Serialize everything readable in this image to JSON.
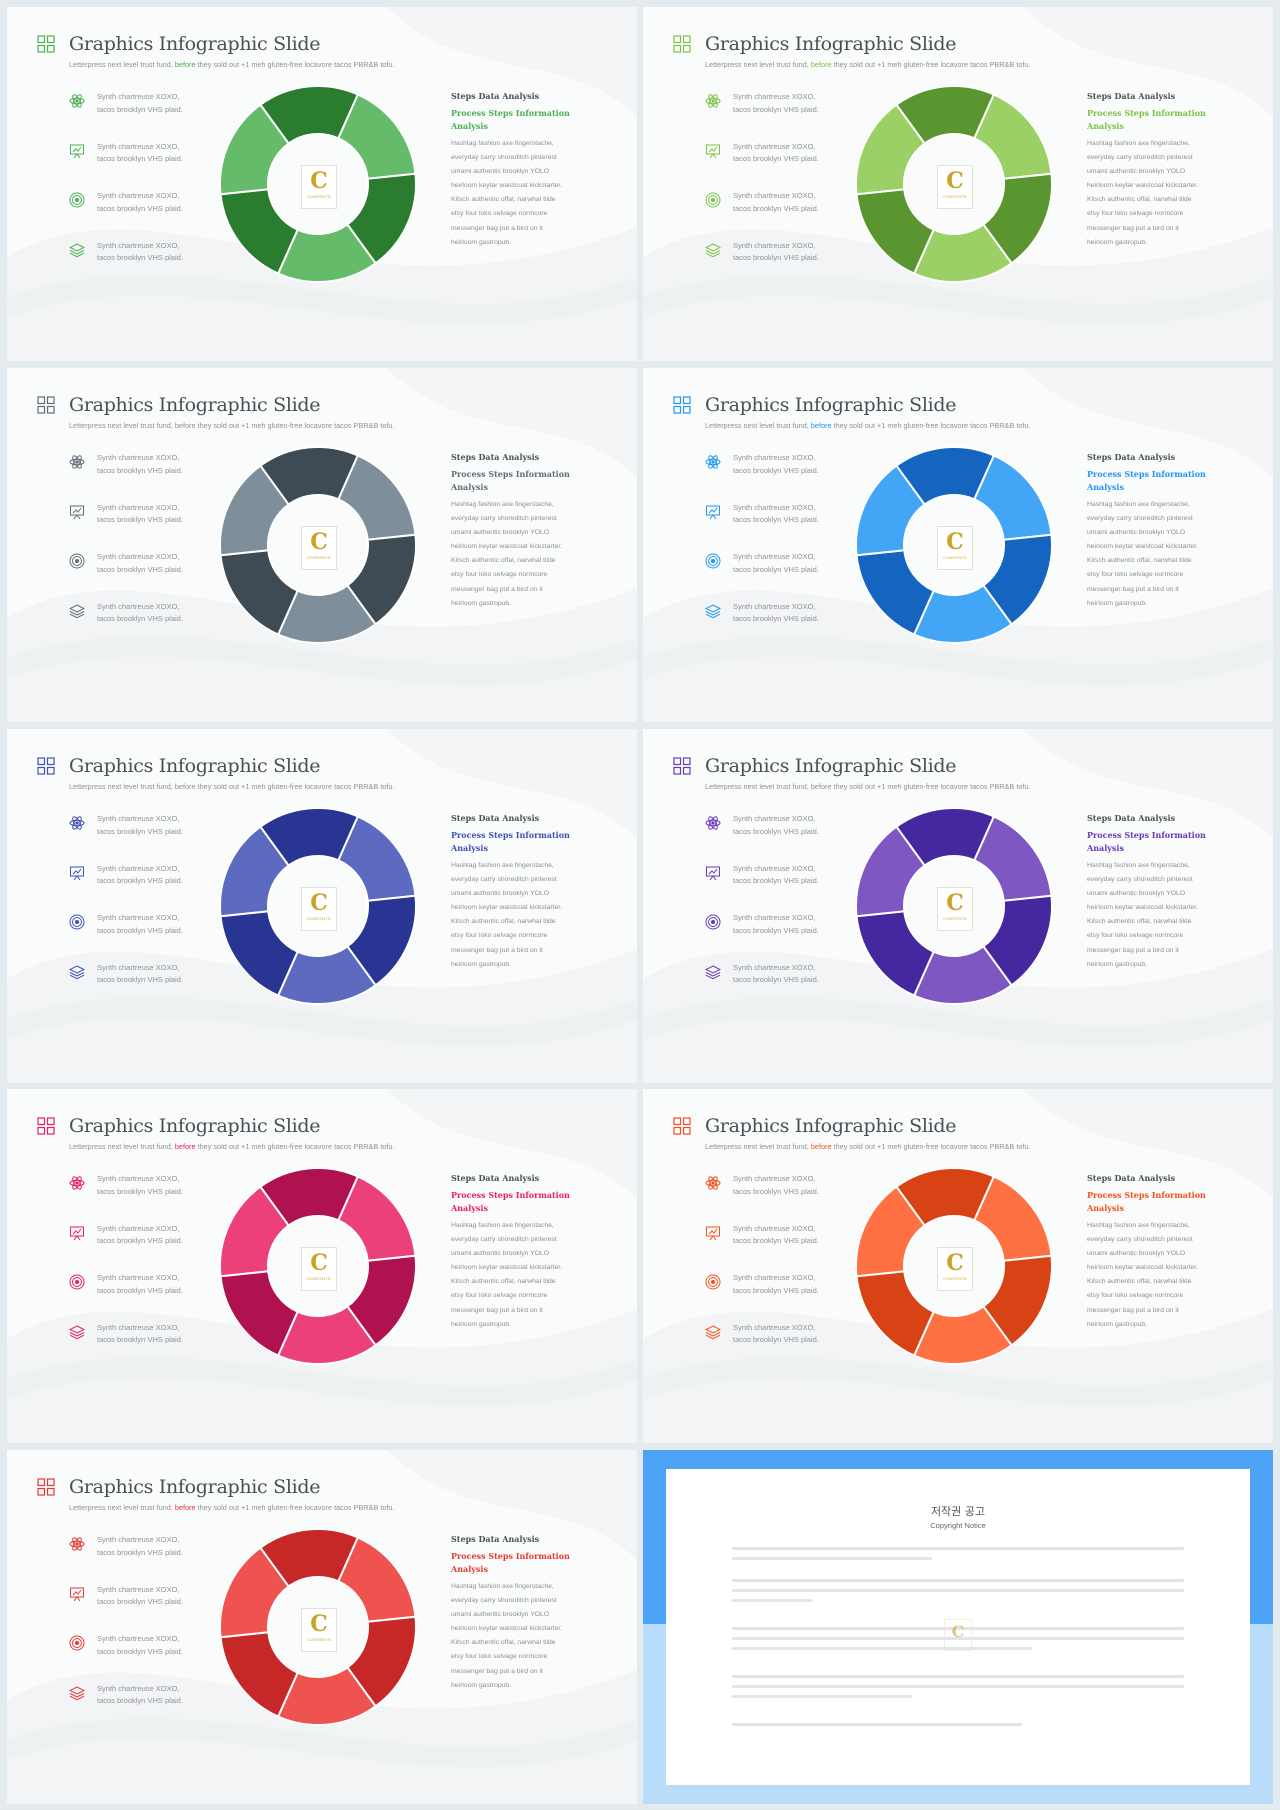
{
  "common": {
    "title": "Graphics Infographic Slide",
    "subtitle_before": "Letterpress next level trust fund, ",
    "subtitle_highlight": "before",
    "subtitle_after": " they sold out +1 meh gluten-free locavore tacos PBR&B tofu.",
    "features": [
      {
        "line1": "Synth chartreuse XOXO,",
        "line2": "tacos brooklyn VHS plaid.",
        "icon": "atom-icon"
      },
      {
        "line1": "Synth chartreuse XOXO,",
        "line2": "tacos brooklyn VHS plaid.",
        "icon": "presentation-board-icon"
      },
      {
        "line1": "Synth chartreuse XOXO,",
        "line2": "tacos brooklyn VHS plaid.",
        "icon": "target-icon"
      },
      {
        "line1": "Synth chartreuse XOXO,",
        "line2": "tacos brooklyn VHS plaid.",
        "icon": "layers-icon"
      }
    ],
    "right_heading": "Steps Data Analysis",
    "right_subheading_1": "Process Steps Information",
    "right_subheading_2": "Analysis",
    "right_body": [
      "Hashtag fashion axe fingerstache,",
      "everyday carry shoreditch pinterest",
      "umami authentic brooklyn YOLO",
      "heirloom keytar waistcoat kickstarter.",
      "Kitsch authentic offal, narwhal tilde",
      "etsy four loko selvage normcore",
      "messenger bag put a bird on it",
      "heirloom gastropub."
    ],
    "badge_letter": "C",
    "badge_text": "CONTENTS"
  },
  "slides": [
    {
      "theme": "green",
      "dark": "#2a7d2e",
      "light": "#66bb6a",
      "accent": "#4caf50",
      "highlight": "#4caf50"
    },
    {
      "theme": "lime",
      "dark": "#5a962f",
      "light": "#9bd067",
      "accent": "#7cc143",
      "highlight": "#7cc143"
    },
    {
      "theme": "slate",
      "dark": "#3e4a54",
      "light": "#7e8f9b",
      "accent": "#5f6e79",
      "highlight": "#8d9196"
    },
    {
      "theme": "blue",
      "dark": "#1565c0",
      "light": "#42a5f5",
      "accent": "#2196f3",
      "highlight": "#2196f3"
    },
    {
      "theme": "indigo",
      "dark": "#283593",
      "light": "#5c6bc0",
      "accent": "#3f51b5",
      "highlight": "#8d9196"
    },
    {
      "theme": "purple",
      "dark": "#4527a0",
      "light": "#7e57c2",
      "accent": "#673ab7",
      "highlight": "#8d9196"
    },
    {
      "theme": "pink",
      "dark": "#b0124f",
      "light": "#ec407a",
      "accent": "#e91e63",
      "highlight": "#e91e63"
    },
    {
      "theme": "orange",
      "dark": "#d84315",
      "light": "#ff7043",
      "accent": "#f4511e",
      "highlight": "#f4511e"
    },
    {
      "theme": "red",
      "dark": "#c62828",
      "light": "#ef5350",
      "accent": "#e53935",
      "highlight": "#e53935"
    }
  ],
  "copyright": {
    "title": "저작권 공고",
    "subtitle": "Copyright Notice",
    "badge_letter": "C"
  }
}
